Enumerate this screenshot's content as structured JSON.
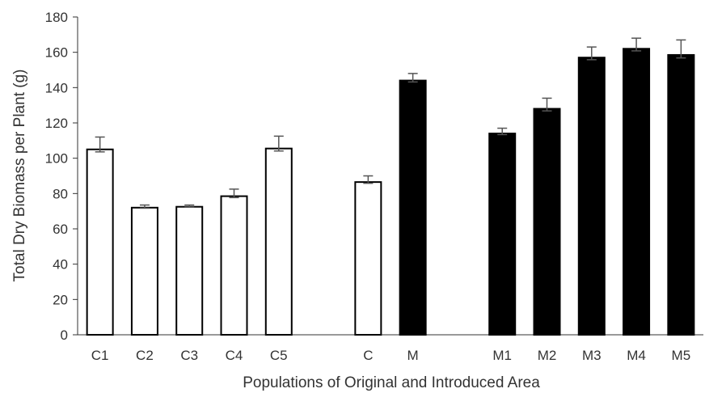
{
  "chart_data": {
    "type": "bar",
    "xlabel": "Populations of Original and Introduced Area",
    "ylabel": "Total Dry Biomass  per Plant  (g)",
    "ylim": [
      0,
      180
    ],
    "yticks": [
      0,
      20,
      40,
      60,
      80,
      100,
      120,
      140,
      160,
      180
    ],
    "grid": false,
    "legend": "none",
    "colors": {
      "open_fill": "#ffffff",
      "solid_fill": "#000000",
      "bar_stroke": "#000000",
      "error_bar": "#555555",
      "axis": "#333333",
      "text": "#333333"
    },
    "categories": [
      "C1",
      "C2",
      "C3",
      "C4",
      "C5",
      "",
      "C",
      "M",
      "",
      "M1",
      "M2",
      "M3",
      "M4",
      "M5"
    ],
    "values": [
      105,
      72,
      72.5,
      78.5,
      105.5,
      null,
      86.5,
      144,
      null,
      114,
      128,
      157,
      162,
      158.5
    ],
    "errors": [
      7,
      1.5,
      1,
      4,
      7,
      null,
      3.5,
      4,
      null,
      3,
      6,
      6,
      6,
      8.5
    ],
    "fills": [
      "open",
      "open",
      "open",
      "open",
      "open",
      null,
      "open",
      "solid",
      null,
      "solid",
      "solid",
      "solid",
      "solid",
      "solid"
    ]
  }
}
